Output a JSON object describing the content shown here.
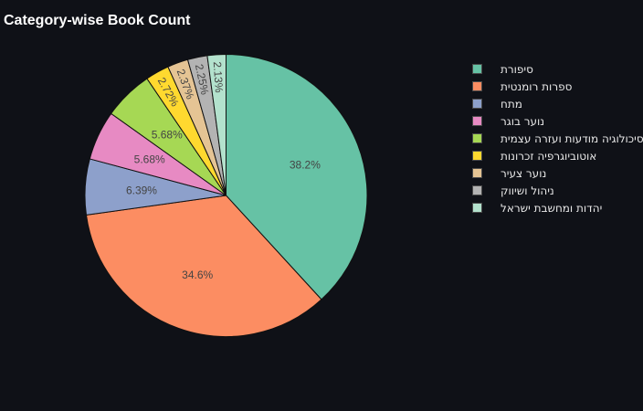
{
  "chart_data": {
    "type": "pie",
    "title": "Category-wise Book Count",
    "categories": [
      "סיפורת",
      "ספרות רומנטית",
      "מתח",
      "נוער בוגר",
      "פסיכולוגיה מודעות ועזרה עצמית",
      "אוטוביוגרפיה זכרונות",
      "נוער צעיר",
      "ניהול ושיווק",
      "יהדות ומחשבת ישראל"
    ],
    "values": [
      38.2,
      34.6,
      6.39,
      5.68,
      5.68,
      2.72,
      2.37,
      2.25,
      2.13
    ],
    "value_labels": [
      "38.2%",
      "34.6%",
      "6.39%",
      "5.68%",
      "5.68%",
      "2.72%",
      "2.37%",
      "2.25%",
      "2.13%"
    ],
    "colors": [
      "#66c2a5",
      "#fc8d62",
      "#8da0cb",
      "#e78ac3",
      "#a6d854",
      "#ffd92f",
      "#e5c494",
      "#b3b3b3",
      "#b3e2cd"
    ],
    "start_angle_deg": 90,
    "direction": "clockwise",
    "legend_position": "right"
  }
}
